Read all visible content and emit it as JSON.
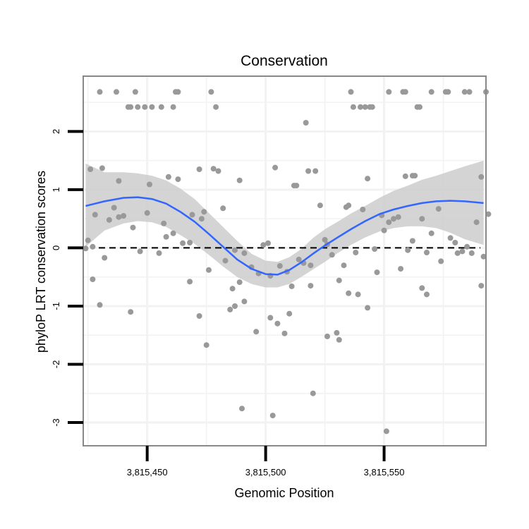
{
  "chart_data": {
    "type": "scatter",
    "title": "Conservation",
    "xlabel": "Genomic Position",
    "ylabel": "phyloP LRT conservation scores",
    "xlim": [
      3815423,
      3815593
    ],
    "ylim": [
      -3.4,
      2.95
    ],
    "x_ticks": [
      3815450,
      3815500,
      3815550
    ],
    "x_tick_labels": [
      "3,815,450",
      "3,815,500",
      "3,815,550"
    ],
    "y_ticks": [
      -3,
      -2,
      -1,
      0,
      1,
      2
    ],
    "y_tick_labels": [
      "-3",
      "-2",
      "-1",
      "0",
      "1",
      "2"
    ],
    "reference_line": {
      "y": 0,
      "style": "dashed"
    },
    "colors": {
      "points": "#999999",
      "smooth_line": "#3366FF",
      "ribbon": "#CCCCCC",
      "panel_border": "#888888",
      "grid": "#F2F2F2"
    },
    "points": [
      {
        "x": 3815430,
        "y": 2.68
      },
      {
        "x": 3815437,
        "y": 2.68
      },
      {
        "x": 3815445,
        "y": 2.68
      },
      {
        "x": 3815462,
        "y": 2.68
      },
      {
        "x": 3815463,
        "y": 2.68
      },
      {
        "x": 3815477,
        "y": 2.68
      },
      {
        "x": 3815536,
        "y": 2.68
      },
      {
        "x": 3815552,
        "y": 2.68
      },
      {
        "x": 3815558,
        "y": 2.68
      },
      {
        "x": 3815559,
        "y": 2.68
      },
      {
        "x": 3815570,
        "y": 2.68
      },
      {
        "x": 3815576,
        "y": 2.68
      },
      {
        "x": 3815577,
        "y": 2.68
      },
      {
        "x": 3815584,
        "y": 2.68
      },
      {
        "x": 3815586,
        "y": 2.68
      },
      {
        "x": 3815593,
        "y": 2.68
      },
      {
        "x": 3815442,
        "y": 2.42
      },
      {
        "x": 3815443,
        "y": 2.42
      },
      {
        "x": 3815446,
        "y": 2.42
      },
      {
        "x": 3815449,
        "y": 2.42
      },
      {
        "x": 3815452,
        "y": 2.42
      },
      {
        "x": 3815456,
        "y": 2.42
      },
      {
        "x": 3815461,
        "y": 2.42
      },
      {
        "x": 3815479,
        "y": 2.42
      },
      {
        "x": 3815537,
        "y": 2.42
      },
      {
        "x": 3815540,
        "y": 2.42
      },
      {
        "x": 3815542,
        "y": 2.42
      },
      {
        "x": 3815544,
        "y": 2.42
      },
      {
        "x": 3815545,
        "y": 2.42
      },
      {
        "x": 3815564,
        "y": 2.42
      },
      {
        "x": 3815565,
        "y": 2.42
      },
      {
        "x": 3815517,
        "y": 2.15
      },
      {
        "x": 3815426,
        "y": 1.35
      },
      {
        "x": 3815431,
        "y": 1.37
      },
      {
        "x": 3815438,
        "y": 1.15
      },
      {
        "x": 3815459,
        "y": 1.22
      },
      {
        "x": 3815463,
        "y": 1.18
      },
      {
        "x": 3815472,
        "y": 1.35
      },
      {
        "x": 3815478,
        "y": 1.36
      },
      {
        "x": 3815480,
        "y": 1.32
      },
      {
        "x": 3815489,
        "y": 1.16
      },
      {
        "x": 3815504,
        "y": 1.38
      },
      {
        "x": 3815518,
        "y": 1.32
      },
      {
        "x": 3815521,
        "y": 1.32
      },
      {
        "x": 3815559,
        "y": 1.23
      },
      {
        "x": 3815562,
        "y": 1.24
      },
      {
        "x": 3815563,
        "y": 1.24
      },
      {
        "x": 3815591,
        "y": 1.22
      },
      {
        "x": 3815512,
        "y": 1.07
      },
      {
        "x": 3815513,
        "y": 1.07
      },
      {
        "x": 3815543,
        "y": 1.19
      },
      {
        "x": 3815425,
        "y": 0.13
      },
      {
        "x": 3815428,
        "y": 0.57
      },
      {
        "x": 3815432,
        "y": -0.17
      },
      {
        "x": 3815434,
        "y": 0.48
      },
      {
        "x": 3815436,
        "y": 0.69
      },
      {
        "x": 3815438,
        "y": 0.53
      },
      {
        "x": 3815440,
        "y": 0.55
      },
      {
        "x": 3815444,
        "y": 0.35
      },
      {
        "x": 3815447,
        "y": -0.06
      },
      {
        "x": 3815450,
        "y": 0.6
      },
      {
        "x": 3815451,
        "y": 1.09
      },
      {
        "x": 3815455,
        "y": -0.09
      },
      {
        "x": 3815457,
        "y": 0.42
      },
      {
        "x": 3815458,
        "y": 0.19
      },
      {
        "x": 3815461,
        "y": 0.25
      },
      {
        "x": 3815465,
        "y": 0.08
      },
      {
        "x": 3815468,
        "y": 0.09
      },
      {
        "x": 3815469,
        "y": 0.57
      },
      {
        "x": 3815473,
        "y": 0.5
      },
      {
        "x": 3815474,
        "y": 0.62
      },
      {
        "x": 3815476,
        "y": -0.38
      },
      {
        "x": 3815482,
        "y": 0.68
      },
      {
        "x": 3815483,
        "y": -0.22
      },
      {
        "x": 3815487,
        "y": -0.04
      },
      {
        "x": 3815491,
        "y": -0.09
      },
      {
        "x": 3815494,
        "y": -0.33
      },
      {
        "x": 3815497,
        "y": -0.44
      },
      {
        "x": 3815499,
        "y": 0.05
      },
      {
        "x": 3815501,
        "y": 0.08
      },
      {
        "x": 3815502,
        "y": -0.48
      },
      {
        "x": 3815506,
        "y": -0.31
      },
      {
        "x": 3815509,
        "y": -0.41
      },
      {
        "x": 3815511,
        "y": -0.66
      },
      {
        "x": 3815514,
        "y": -0.2
      },
      {
        "x": 3815516,
        "y": -0.26
      },
      {
        "x": 3815519,
        "y": -0.3
      },
      {
        "x": 3815523,
        "y": 0.73
      },
      {
        "x": 3815525,
        "y": 0.14
      },
      {
        "x": 3815526,
        "y": 0.06
      },
      {
        "x": 3815528,
        "y": -0.12
      },
      {
        "x": 3815531,
        "y": -0.56
      },
      {
        "x": 3815533,
        "y": -0.3
      },
      {
        "x": 3815534,
        "y": 0.7
      },
      {
        "x": 3815535,
        "y": 0.73
      },
      {
        "x": 3815538,
        "y": -0.08
      },
      {
        "x": 3815541,
        "y": 0.66
      },
      {
        "x": 3815546,
        "y": -0.02
      },
      {
        "x": 3815549,
        "y": 0.56
      },
      {
        "x": 3815550,
        "y": 0.3
      },
      {
        "x": 3815552,
        "y": 0.44
      },
      {
        "x": 3815554,
        "y": 0.5
      },
      {
        "x": 3815556,
        "y": 0.53
      },
      {
        "x": 3815557,
        "y": -0.36
      },
      {
        "x": 3815560,
        "y": -0.04
      },
      {
        "x": 3815562,
        "y": 0.12
      },
      {
        "x": 3815566,
        "y": 0.5
      },
      {
        "x": 3815568,
        "y": -0.08
      },
      {
        "x": 3815570,
        "y": 0.25
      },
      {
        "x": 3815573,
        "y": 0.67
      },
      {
        "x": 3815574,
        "y": -0.23
      },
      {
        "x": 3815578,
        "y": 0.17
      },
      {
        "x": 3815580,
        "y": 0.09
      },
      {
        "x": 3815581,
        "y": -0.09
      },
      {
        "x": 3815583,
        "y": -0.06
      },
      {
        "x": 3815585,
        "y": 0.02
      },
      {
        "x": 3815587,
        "y": -0.09
      },
      {
        "x": 3815589,
        "y": 0.44
      },
      {
        "x": 3815592,
        "y": -0.15
      },
      {
        "x": 3815594,
        "y": 0.58
      },
      {
        "x": 3815424,
        "y": -0.01
      },
      {
        "x": 3815427,
        "y": 0.02
      },
      {
        "x": 3815427,
        "y": -0.54
      },
      {
        "x": 3815430,
        "y": -0.98
      },
      {
        "x": 3815443,
        "y": -1.1
      },
      {
        "x": 3815468,
        "y": -0.58
      },
      {
        "x": 3815472,
        "y": -1.17
      },
      {
        "x": 3815475,
        "y": -1.67
      },
      {
        "x": 3815485,
        "y": -1.06
      },
      {
        "x": 3815486,
        "y": -0.7
      },
      {
        "x": 3815487,
        "y": -1.0
      },
      {
        "x": 3815489,
        "y": -0.59
      },
      {
        "x": 3815491,
        "y": -0.92
      },
      {
        "x": 3815496,
        "y": -1.44
      },
      {
        "x": 3815502,
        "y": -1.2
      },
      {
        "x": 3815505,
        "y": -1.3
      },
      {
        "x": 3815508,
        "y": -1.47
      },
      {
        "x": 3815510,
        "y": -1.13
      },
      {
        "x": 3815519,
        "y": -0.65
      },
      {
        "x": 3815526,
        "y": -1.52
      },
      {
        "x": 3815530,
        "y": -1.46
      },
      {
        "x": 3815531,
        "y": -1.58
      },
      {
        "x": 3815535,
        "y": -0.78
      },
      {
        "x": 3815539,
        "y": -0.8
      },
      {
        "x": 3815543,
        "y": -1.03
      },
      {
        "x": 3815547,
        "y": -0.42
      },
      {
        "x": 3815566,
        "y": -0.69
      },
      {
        "x": 3815568,
        "y": -0.8
      },
      {
        "x": 3815591,
        "y": -0.65
      },
      {
        "x": 3815490,
        "y": -2.76
      },
      {
        "x": 3815503,
        "y": -2.88
      },
      {
        "x": 3815520,
        "y": -2.5
      },
      {
        "x": 3815551,
        "y": -3.15
      }
    ],
    "smooth": {
      "x": [
        3815424,
        3815432,
        3815440,
        3815446,
        3815452,
        3815458,
        3815464,
        3815470,
        3815476,
        3815482,
        3815488,
        3815494,
        3815500,
        3815505,
        3815510,
        3815515,
        3815520,
        3815525,
        3815530,
        3815536,
        3815542,
        3815548,
        3815554,
        3815560,
        3815566,
        3815572,
        3815578,
        3815584,
        3815592
      ],
      "y": [
        0.72,
        0.8,
        0.86,
        0.87,
        0.84,
        0.76,
        0.62,
        0.45,
        0.24,
        0.02,
        -0.2,
        -0.36,
        -0.45,
        -0.46,
        -0.38,
        -0.25,
        -0.1,
        0.04,
        0.17,
        0.32,
        0.46,
        0.58,
        0.66,
        0.72,
        0.77,
        0.8,
        0.81,
        0.8,
        0.77
      ],
      "lower": [
        0.02,
        0.3,
        0.42,
        0.46,
        0.44,
        0.36,
        0.22,
        0.07,
        -0.12,
        -0.32,
        -0.5,
        -0.62,
        -0.68,
        -0.68,
        -0.62,
        -0.5,
        -0.37,
        -0.24,
        -0.1,
        0.05,
        0.18,
        0.28,
        0.34,
        0.37,
        0.37,
        0.34,
        0.26,
        0.15,
        0.05
      ],
      "upper": [
        1.45,
        1.3,
        1.3,
        1.28,
        1.24,
        1.16,
        1.02,
        0.84,
        0.6,
        0.36,
        0.12,
        -0.1,
        -0.22,
        -0.24,
        -0.16,
        -0.02,
        0.17,
        0.32,
        0.44,
        0.59,
        0.72,
        0.86,
        0.98,
        1.07,
        1.17,
        1.24,
        1.32,
        1.4,
        1.5
      ]
    }
  }
}
